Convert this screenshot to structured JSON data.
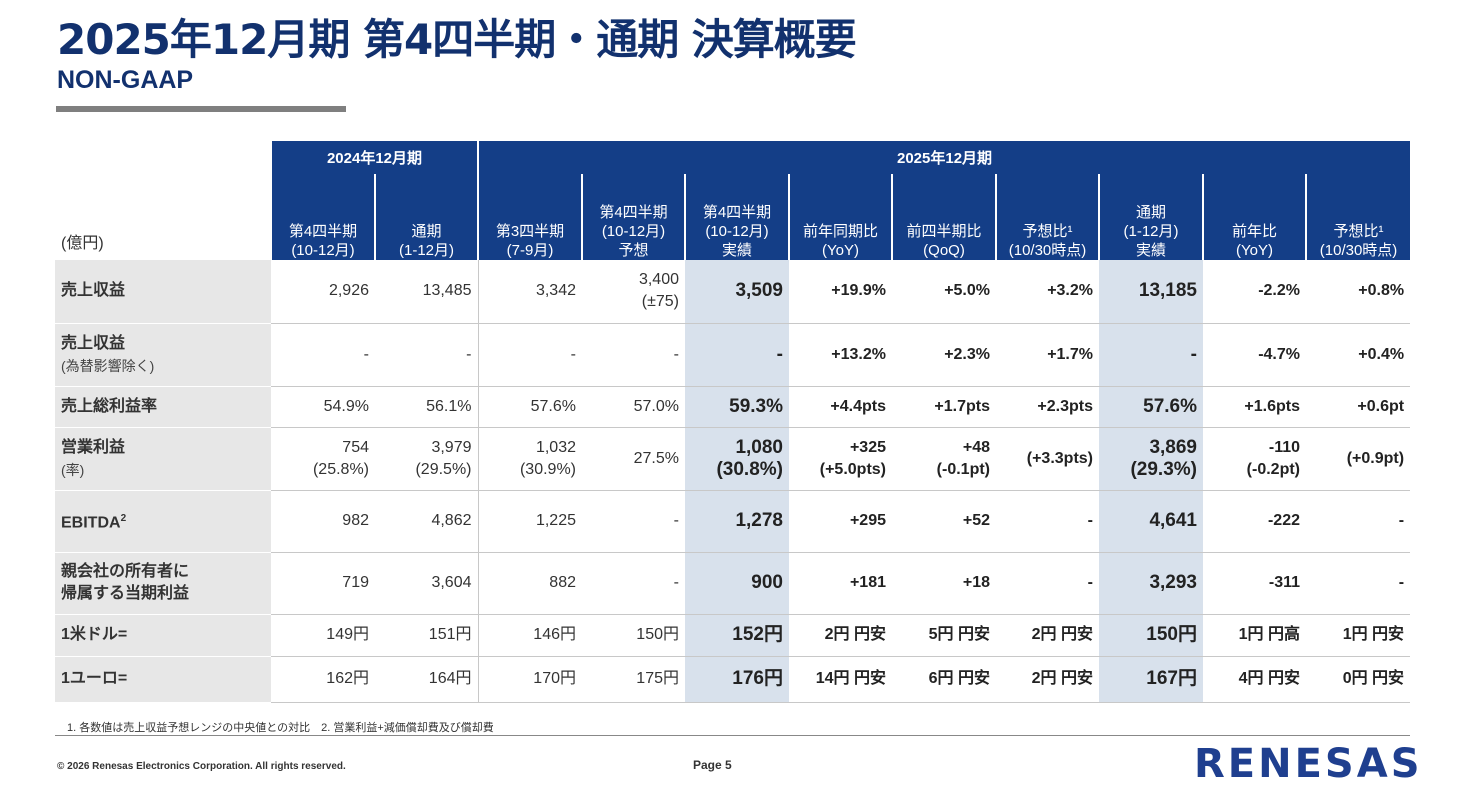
{
  "title": "2025年12月期 第4四半期・通期 決算概要",
  "subtitle": "NON-GAAP",
  "table": {
    "unit": "(億円)",
    "fy2024": "2024年12月期",
    "fy2025": "2025年12月期",
    "col": {
      "c1": [
        "第4四半期",
        "(10-12月)"
      ],
      "c2": [
        "通期",
        "(1-12月)"
      ],
      "c3": [
        "第3四半期",
        "(7-9月)"
      ],
      "c4": [
        "第4四半期",
        "(10-12月)",
        "予想"
      ],
      "c5": [
        "第4四半期",
        "(10-12月)",
        "実績"
      ],
      "c6": [
        "前年同期比",
        "(YoY)"
      ],
      "c7": [
        "前四半期比",
        "(QoQ)"
      ],
      "c8": [
        "予想比¹",
        "(10/30時点)"
      ],
      "c9": [
        "通期",
        "(1-12月)",
        "実績"
      ],
      "c10": [
        "前年比",
        "(YoY)"
      ],
      "c11": [
        "予想比¹",
        "(10/30時点)"
      ]
    },
    "rows": {
      "r1": {
        "label": "売上収益",
        "note": "",
        "v": [
          "2,926",
          "13,485",
          "3,342",
          "3,400",
          "3,509",
          "+19.9%",
          "+5.0%",
          "+3.2%",
          "13,185",
          "-2.2%",
          "+0.8%"
        ],
        "v2": [
          "",
          "",
          "",
          "(±75)",
          "",
          "",
          "",
          "",
          "",
          "",
          ""
        ]
      },
      "r2": {
        "label": "売上収益",
        "note": "(為替影響除く)",
        "v": [
          "-",
          "-",
          "-",
          "-",
          "-",
          "+13.2%",
          "+2.3%",
          "+1.7%",
          "-",
          "-4.7%",
          "+0.4%"
        ],
        "v2": []
      },
      "r3": {
        "label": "売上総利益率",
        "note": "",
        "v": [
          "54.9%",
          "56.1%",
          "57.6%",
          "57.0%",
          "59.3%",
          "+4.4pts",
          "+1.7pts",
          "+2.3pts",
          "57.6%",
          "+1.6pts",
          "+0.6pt"
        ],
        "v2": []
      },
      "r4": {
        "label": "営業利益",
        "note": "(率)",
        "v": [
          "754",
          "3,979",
          "1,032",
          "27.5%",
          "1,080",
          "+325",
          "+48",
          "(+3.3pts)",
          "3,869",
          "-110",
          "(+0.9pt)"
        ],
        "v2": [
          "(25.8%)",
          "(29.5%)",
          "(30.9%)",
          "",
          "(30.8%)",
          "(+5.0pts)",
          "(-0.1pt)",
          "",
          "(29.3%)",
          "(-0.2pt)",
          ""
        ]
      },
      "r5": {
        "label": "EBITDA",
        "sup": "2",
        "note": "",
        "v": [
          "982",
          "4,862",
          "1,225",
          "-",
          "1,278",
          "+295",
          "+52",
          "-",
          "4,641",
          "-222",
          "-"
        ]
      },
      "r6": {
        "label": "親会社の所有者に",
        "label2": "帰属する当期利益",
        "v": [
          "719",
          "3,604",
          "882",
          "-",
          "900",
          "+181",
          "+18",
          "-",
          "3,293",
          "-311",
          "-"
        ]
      },
      "r7": {
        "label": "1米ドル=",
        "v": [
          "149円",
          "151円",
          "146円",
          "150円",
          "152円",
          "2円 円安",
          "5円 円安",
          "2円 円安",
          "150円",
          "1円 円高",
          "1円 円安"
        ]
      },
      "r8": {
        "label": "1ユーロ=",
        "v": [
          "162円",
          "164円",
          "170円",
          "175円",
          "176円",
          "14円 円安",
          "6円 円安",
          "2円 円安",
          "167円",
          "4円 円安",
          "0円 円安"
        ]
      }
    }
  },
  "footnote": "1. 各数値は売上収益予想レンジの中央値との対比　2. 営業利益+減価償却費及び償却費",
  "copyright": "© 2026 Renesas Electronics Corporation. All rights reserved.",
  "page": "Page 5",
  "logo": "RENESAS",
  "colors": {
    "navy": "#143e87",
    "highlight": "#d8e1ec",
    "label_bg": "#e7e7e7"
  }
}
